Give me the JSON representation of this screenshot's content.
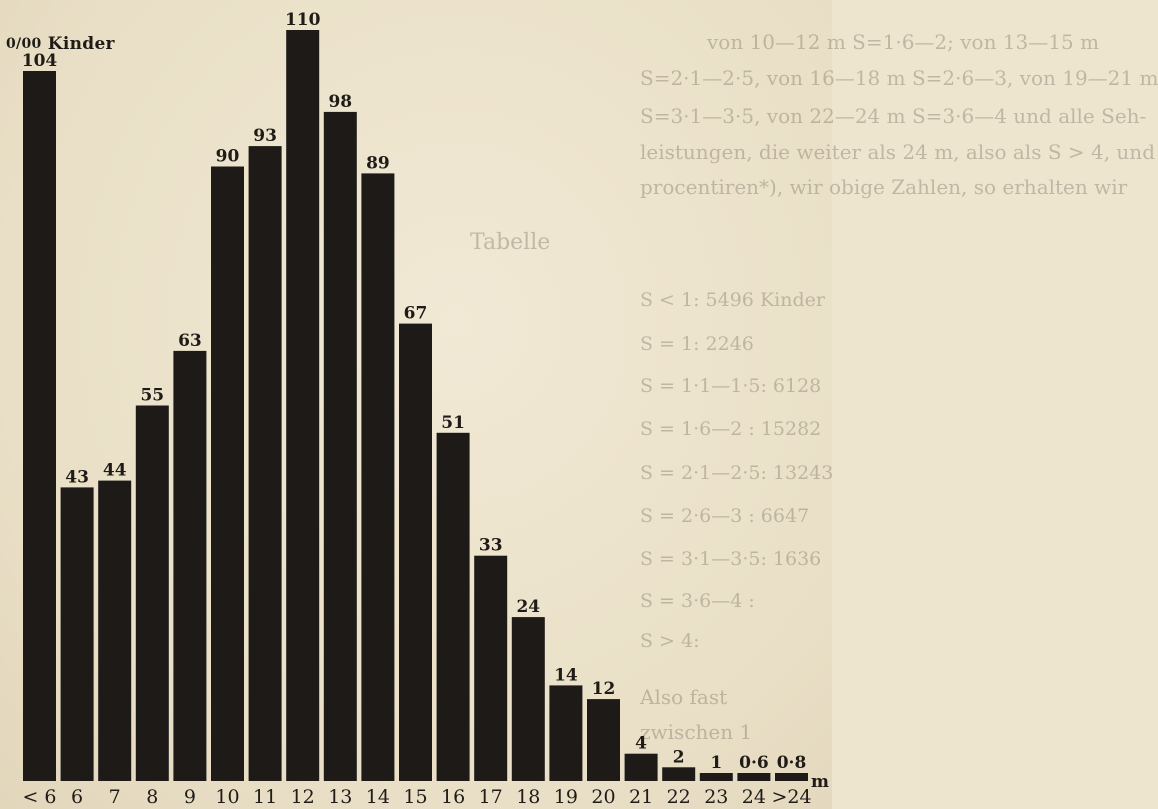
{
  "background_text": [
    "von 10—12 m S=1·6—2; von 13—15 m",
    "S=2·1—2·5, von 16—18 m S=2·6—3, von 19—21 m",
    "S=3·1—3·5, von 22—24 m S=3·6—4 und alle Seh-",
    "leistungen, die weiter als 24 m, also als S > 4, und",
    "procentiren*), wir obige Zahlen, so erhalten wir",
    "Tabelle",
    "S < 1:   5496 Kinder",
    "S = 1:   2246",
    "S = 1·1—1·5:   6128",
    "S = 1·6—2 :   15282",
    "S = 2·1—2·5:   13243",
    "S = 2·6—3 :   6647",
    "S = 3·1—3·5:   1636",
    "S = 3·6—4 :",
    "S > 4:",
    "Also fast",
    "zwischen 1"
  ],
  "chart_data": {
    "type": "bar",
    "title": "",
    "ylabel": "°/oo Kinder",
    "ylabel_parts": {
      "unit": "0/00",
      "word": "Kinder"
    },
    "xlabel": "m",
    "categories": [
      "< 6",
      "6",
      "7",
      "8",
      "9",
      "10",
      "11",
      "12",
      "13",
      "14",
      "15",
      "16",
      "17",
      "18",
      "19",
      "20",
      "21",
      "22",
      "23",
      "24",
      ">24"
    ],
    "values": [
      104,
      43,
      44,
      55,
      63,
      90,
      93,
      110,
      98,
      89,
      67,
      51,
      33,
      24,
      14,
      12,
      4,
      2,
      1,
      0.6,
      0.8
    ],
    "value_labels": [
      "104",
      "43",
      "44",
      "55",
      "63",
      "90",
      "93",
      "110",
      "98",
      "89",
      "67",
      "51",
      "33",
      "24",
      "14",
      "12",
      "4",
      "2",
      "1",
      "0·6",
      "0·8"
    ],
    "ylim": [
      0,
      110
    ],
    "grid": false,
    "legend": "none",
    "colors": {
      "bar": "#1d1a18",
      "text": "#1f1b17",
      "paper": "#eee5cf"
    }
  }
}
